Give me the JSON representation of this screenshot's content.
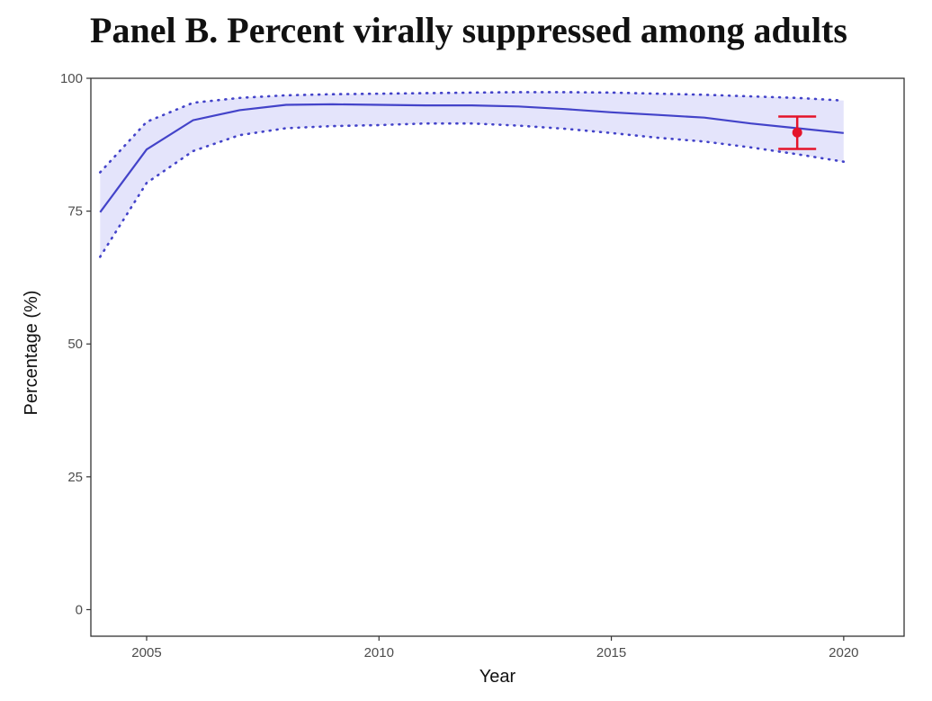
{
  "chart_data": {
    "type": "line",
    "title": "Panel B. Percent virally suppressed among adults",
    "xlabel": "Year",
    "ylabel": "Percentage (%)",
    "xlim": [
      2003.8,
      2021.3
    ],
    "ylim": [
      -5,
      100
    ],
    "x_ticks": [
      2005,
      2010,
      2015,
      2020
    ],
    "y_ticks": [
      0,
      25,
      50,
      75,
      100
    ],
    "grid": false,
    "series": [
      {
        "role": "estimate",
        "x": [
          2004,
          2005,
          2006,
          2007,
          2008,
          2009,
          2010,
          2011,
          2012,
          2013,
          2014,
          2015,
          2016,
          2017,
          2018,
          2019,
          2020
        ],
        "values": [
          74.8,
          86.6,
          92.1,
          94.0,
          95.0,
          95.1,
          95.0,
          94.9,
          94.9,
          94.7,
          94.2,
          93.6,
          93.1,
          92.6,
          91.5,
          90.6,
          89.7
        ]
      },
      {
        "role": "upper-bound",
        "x": [
          2004,
          2005,
          2006,
          2007,
          2008,
          2009,
          2010,
          2011,
          2012,
          2013,
          2014,
          2015,
          2016,
          2017,
          2018,
          2019,
          2020
        ],
        "values": [
          82.3,
          91.8,
          95.4,
          96.3,
          96.8,
          97.0,
          97.1,
          97.2,
          97.3,
          97.4,
          97.4,
          97.3,
          97.1,
          96.9,
          96.6,
          96.3,
          95.8
        ]
      },
      {
        "role": "lower-bound",
        "x": [
          2004,
          2005,
          2006,
          2007,
          2008,
          2009,
          2010,
          2011,
          2012,
          2013,
          2014,
          2015,
          2016,
          2017,
          2018,
          2019,
          2020
        ],
        "values": [
          66.4,
          80.3,
          86.3,
          89.3,
          90.6,
          91.0,
          91.2,
          91.5,
          91.5,
          91.1,
          90.5,
          89.7,
          88.8,
          88.1,
          87.0,
          85.7,
          84.3
        ]
      }
    ],
    "observed": {
      "x": 2019,
      "value": 89.8,
      "lower": 86.7,
      "upper": 92.8
    },
    "colors": {
      "line": "#4343c9",
      "band": "#e4e4fb",
      "point": "#e4142a",
      "panel_border": "#333333"
    }
  }
}
